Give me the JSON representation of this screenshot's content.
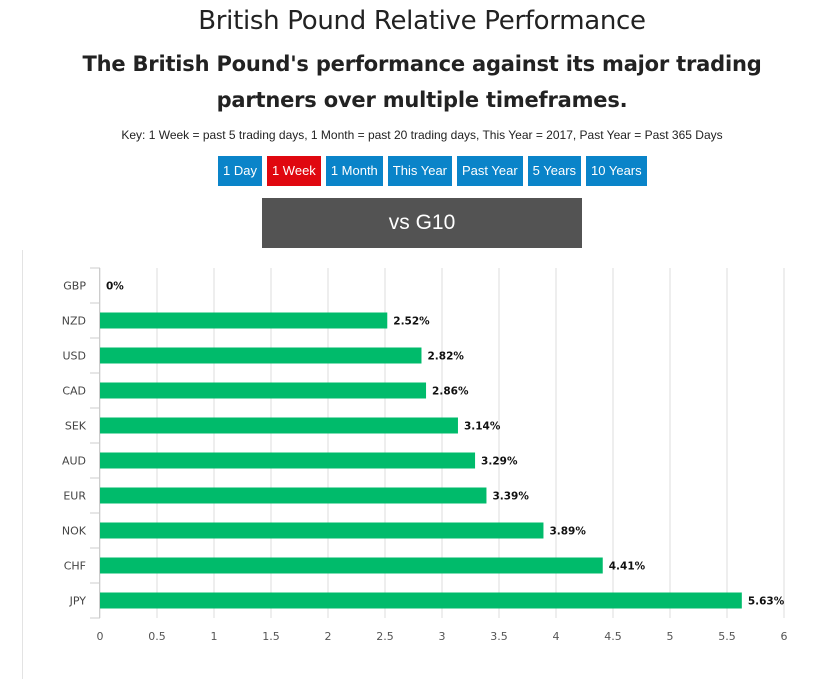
{
  "title": "British Pound Relative Performance",
  "subtitle": "The British Pound's performance against its major trading partners over multiple timeframes.",
  "key": "Key: 1 Week = past 5 trading days, 1 Month = past 20 trading days, This Year = 2017, Past Year = Past 365 Days",
  "timeframes": [
    {
      "label": "1 Day",
      "active": false
    },
    {
      "label": "1 Week",
      "active": true
    },
    {
      "label": "1 Month",
      "active": false
    },
    {
      "label": "This Year",
      "active": false
    },
    {
      "label": "Past Year",
      "active": false
    },
    {
      "label": "5 Years",
      "active": false
    },
    {
      "label": "10 Years",
      "active": false
    }
  ],
  "group_label": "vs G10",
  "colors": {
    "bar": "#00bb6b",
    "active_button": "#e0070f",
    "button": "#0a84c9",
    "header": "#535353"
  },
  "chart_data": {
    "type": "bar",
    "orientation": "horizontal",
    "categories": [
      "GBP",
      "NZD",
      "USD",
      "CAD",
      "SEK",
      "AUD",
      "EUR",
      "NOK",
      "CHF",
      "JPY"
    ],
    "values": [
      0,
      2.52,
      2.82,
      2.86,
      3.14,
      3.29,
      3.39,
      3.89,
      4.41,
      5.63
    ],
    "data_labels": [
      "0%",
      "2.52%",
      "2.82%",
      "2.86%",
      "3.14%",
      "3.29%",
      "3.39%",
      "3.89%",
      "4.41%",
      "5.63%"
    ],
    "xlim": [
      0,
      6
    ],
    "xticks": [
      "0",
      "0.5",
      "1",
      "1.5",
      "2",
      "2.5",
      "3",
      "3.5",
      "4",
      "4.5",
      "5",
      "5.5",
      "6"
    ],
    "grid": true,
    "title": "",
    "xlabel": "",
    "ylabel": ""
  }
}
